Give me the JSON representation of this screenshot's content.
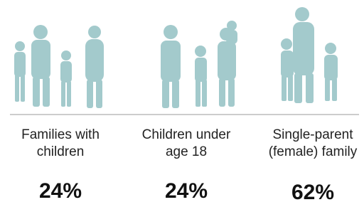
{
  "items": [
    {
      "label_lines": [
        "Families with",
        "children"
      ],
      "value": "24%"
    },
    {
      "label_lines": [
        "Children under",
        "age 18"
      ],
      "value": "24%"
    },
    {
      "label_lines": [
        "Single-parent",
        "(female) family"
      ],
      "value": "62%"
    }
  ]
}
